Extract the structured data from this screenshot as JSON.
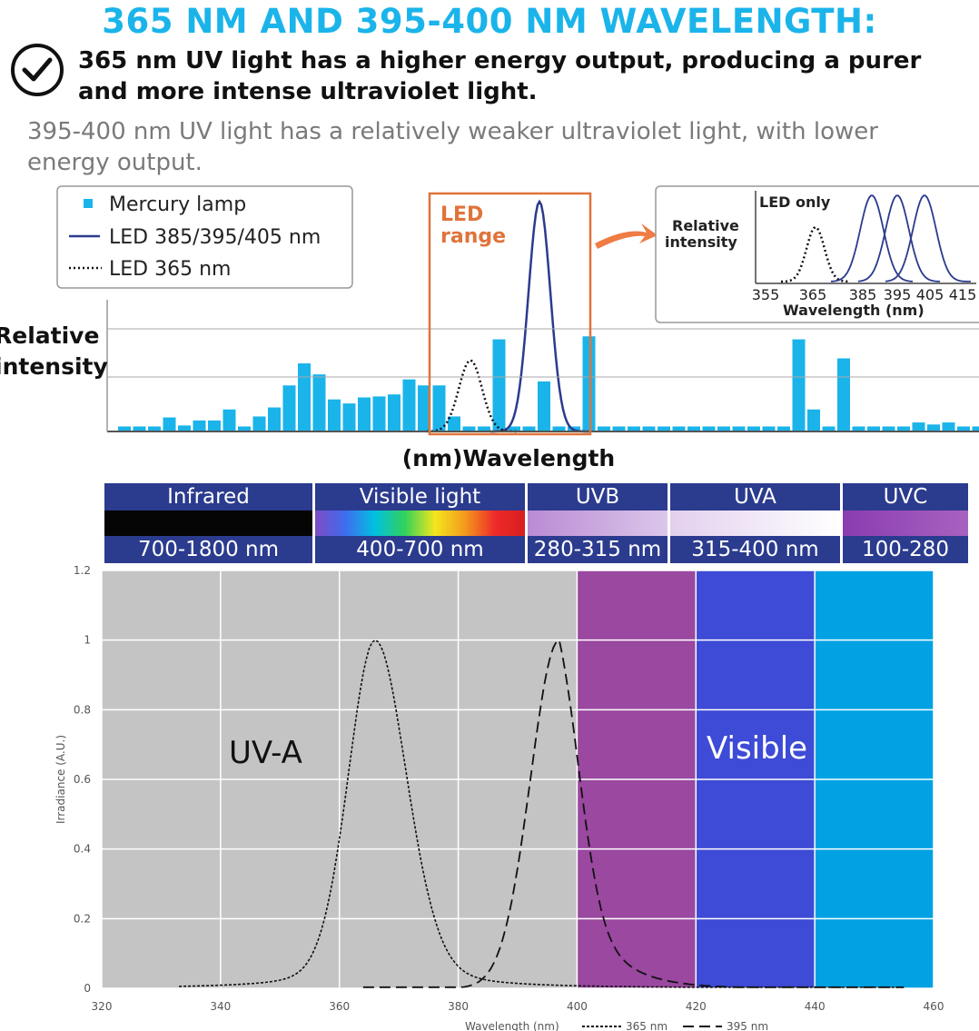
{
  "header": {
    "title": "365 NM AND 395-400 NM WAVELENGTH:",
    "point1": "365 nm UV light has a higher energy output, producing a purer and more intense ultraviolet light.",
    "point2": "395-400 nm UV light has a relatively weaker ultraviolet light, with lower energy output."
  },
  "colors": {
    "title": "#1ab4ea",
    "mercury": "#1ab4ea",
    "led": "#2b3b8e",
    "led_range_box": "#e0733a",
    "uva_region": "#c4c4c4",
    "violet_region": "#9a48a0",
    "blue_region": "#3d4bd6",
    "cyan_region": "#00a2e4"
  },
  "top_chart": {
    "legend": [
      "Mercury lamp",
      "LED 385/395/405 nm",
      "LED 365 nm"
    ],
    "led_range_label_1": "LED",
    "led_range_label_2": "range",
    "ylabel_1": "Relative",
    "ylabel_2": "intensity",
    "xlabel": "(nm)Wavelength",
    "inset": {
      "title": "LED only",
      "ylabel_1": "Relative",
      "ylabel_2": "intensity",
      "xlabel": "Wavelength (nm)",
      "ticks": [
        "355",
        "365",
        "385",
        "395",
        "405",
        "415"
      ]
    }
  },
  "spectrum_bands": [
    {
      "label": "Infrared",
      "range": "700-1800 nm"
    },
    {
      "label": "Visible light",
      "range": "400-700 nm"
    },
    {
      "label": "UVB",
      "range": "280-315 nm"
    },
    {
      "label": "UVA",
      "range": "315-400 nm"
    },
    {
      "label": "UVC",
      "range": "100-280 nm"
    }
  ],
  "chart_data": [
    {
      "type": "bar",
      "title": "",
      "xlabel": "(nm)Wavelength",
      "ylabel": "Relative intensity",
      "series": [
        {
          "name": "Mercury lamp",
          "values": [
            0.05,
            0.05,
            0.05,
            0.14,
            0.06,
            0.11,
            0.11,
            0.22,
            0.05,
            0.15,
            0.24,
            0.46,
            0.68,
            0.57,
            0.32,
            0.28,
            0.34,
            0.35,
            0.37,
            0.52,
            0.46,
            0.46,
            0.15,
            0.05,
            0.05,
            0.92,
            0.05,
            0.05,
            0.5,
            0.05,
            0.05,
            0.95,
            0.05,
            0.05,
            0.05,
            0.05,
            0.05,
            0.05,
            0.05,
            0.05,
            0.05,
            0.05,
            0.05,
            0.05,
            0.05,
            0.92,
            0.22,
            0.05,
            0.73,
            0.05,
            0.05,
            0.05,
            0.05,
            0.09,
            0.07,
            0.09,
            0.05,
            0.05
          ]
        },
        {
          "name": "LED 385/395/405 nm",
          "peak": 1.0
        },
        {
          "name": "LED 365 nm",
          "peak": 0.7
        }
      ]
    },
    {
      "type": "line",
      "title": "",
      "xlabel": "Wavelength (nm)",
      "ylabel": "Irradiance (A.U.)",
      "xlim": [
        320,
        460
      ],
      "ylim": [
        0,
        1.2
      ],
      "xticks": [
        320,
        340,
        360,
        380,
        400,
        420,
        440,
        460
      ],
      "yticks": [
        "0",
        "0.2",
        "0.4",
        "0.6",
        "0.8",
        "1",
        "1.2"
      ],
      "regions": [
        {
          "label": "UV-A",
          "from": 320,
          "to": 400
        },
        {
          "label": "",
          "from": 400,
          "to": 420
        },
        {
          "label": "Visible",
          "from": 420,
          "to": 440
        },
        {
          "label": "",
          "from": 440,
          "to": 460
        }
      ],
      "series": [
        {
          "name": "365 nm",
          "peak_x": 366,
          "peak_y": 1.0
        },
        {
          "name": "395 nm",
          "peak_x": 397,
          "peak_y": 1.0
        }
      ]
    }
  ]
}
